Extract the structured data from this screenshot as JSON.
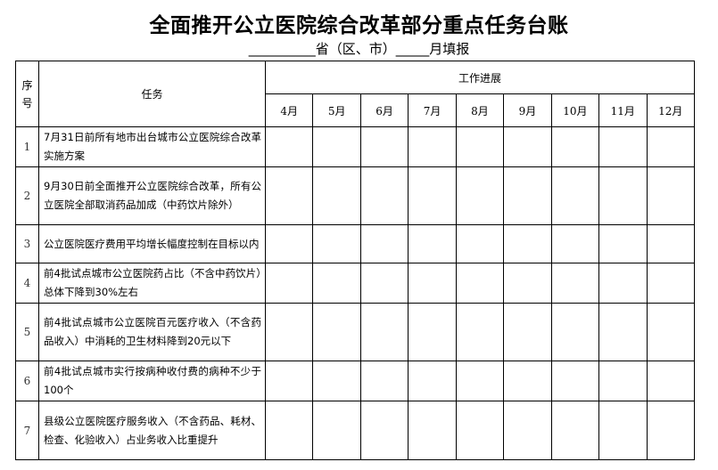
{
  "title": "全面推开公立医院综合改革部分重点任务台账",
  "subtitle": "__________省（区、市）_____月填报",
  "table": {
    "col_seq": "序号",
    "col_task": "任务",
    "col_progress": "工作进展",
    "months": [
      "4月",
      "5月",
      "6月",
      "7月",
      "8月",
      "9月",
      "10月",
      "11月",
      "12月"
    ],
    "rows": [
      {
        "seq": "1",
        "task": "7月31日前所有地市出台城市公立医院综合改革实施方案"
      },
      {
        "seq": "2",
        "task": "9月30日前全面推开公立医院综合改革，所有公立医院全部取消药品加成（中药饮片除外）"
      },
      {
        "seq": "3",
        "task": "公立医院医疗费用平均增长幅度控制在目标以内"
      },
      {
        "seq": "4",
        "task": "前4批试点城市公立医院药占比（不含中药饮片）总体下降到30%左右"
      },
      {
        "seq": "5",
        "task": "前4批试点城市公立医院百元医疗收入（不含药品收入）中消耗的卫生材料降到20元以下"
      },
      {
        "seq": "6",
        "task": "前4批试点城市实行按病种收付费的病种不少于100个"
      },
      {
        "seq": "7",
        "task": "县级公立医院医疗服务收入（不含药品、耗材、检查、化验收入）占业务收入比重提升"
      }
    ]
  }
}
